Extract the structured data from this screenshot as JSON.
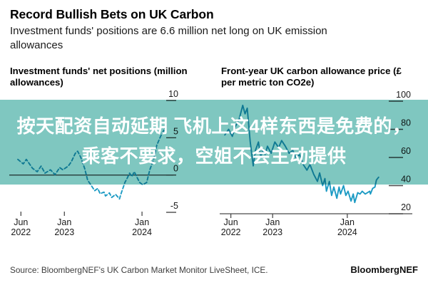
{
  "header": {
    "title": "Record Bullish Bets on UK Carbon",
    "subtitle": "Investment funds' positions are 6.6 million net long on UK emission allowances"
  },
  "overlay": {
    "line1": "按天配资自动延期 飞机上这4样东西是免费的，",
    "line2": "乘客不要求，空姐不会主动提供",
    "band_color": "#7fc7c0",
    "text_color": "#ffffff"
  },
  "footer": {
    "source": "Source: BloombergNEF's UK Carbon Market Monitor LiveSheet, ICE.",
    "brand": "BloombergNEF"
  },
  "colors": {
    "line": "#1d9bc4",
    "axis": "#4a4a4a",
    "tick_text": "#1a1a1a"
  },
  "chart_data": [
    {
      "type": "line",
      "title": "Investment funds' net positions (million allowances)",
      "ylabel": "million allowances",
      "line_style": "dashed",
      "xlim": [
        2022.29,
        2024.33
      ],
      "ylim": [
        -5,
        10
      ],
      "yticks": [
        10,
        5,
        0,
        -5
      ],
      "xticks": [
        {
          "v": 2022.44,
          "l1": "Jun",
          "l2": "2022"
        },
        {
          "v": 2023.0,
          "l1": "Jan",
          "l2": "2023"
        },
        {
          "v": 2024.0,
          "l1": "Jan",
          "l2": "2024"
        }
      ],
      "zero_line": true,
      "baseline": false,
      "x": [
        2022.4,
        2022.47,
        2022.51,
        2022.59,
        2022.65,
        2022.7,
        2022.75,
        2022.82,
        2022.88,
        2022.94,
        2022.98,
        2023.05,
        2023.09,
        2023.14,
        2023.17,
        2023.21,
        2023.26,
        2023.3,
        2023.34,
        2023.39,
        2023.43,
        2023.46,
        2023.51,
        2023.53,
        2023.58,
        2023.61,
        2023.66,
        2023.71,
        2023.73,
        2023.78,
        2023.81,
        2023.84,
        2023.87,
        2023.9,
        2023.94,
        2023.97,
        2024.01,
        2024.06,
        2024.1,
        2024.15,
        2024.19,
        2024.24,
        2024.28,
        2024.31
      ],
      "y": [
        2.1,
        1.5,
        2.1,
        0.9,
        0.45,
        1.2,
        0.25,
        0.7,
        0.05,
        1.0,
        0.7,
        1.2,
        1.8,
        2.9,
        3.2,
        2.4,
        0.9,
        -0.7,
        -1.3,
        -2.1,
        -1.8,
        -2.5,
        -2.3,
        -2.8,
        -2.4,
        -3.0,
        -2.6,
        -3.2,
        -2.5,
        -1.0,
        -0.4,
        0.25,
        -0.2,
        0.45,
        -0.4,
        -1.0,
        -1.3,
        -1.0,
        0.7,
        2.1,
        4.0,
        5.2,
        6.0,
        6.6
      ]
    },
    {
      "type": "line",
      "title": "Front-year UK carbon allowance price (£ per metric ton CO2e)",
      "ylabel": "£ per metric ton CO2e",
      "line_style": "solid",
      "xlim": [
        2022.31,
        2024.46
      ],
      "ylim": [
        20,
        100
      ],
      "yticks": [
        100,
        80,
        60,
        40,
        20
      ],
      "xticks": [
        {
          "v": 2022.44,
          "l1": "Jun",
          "l2": "2022"
        },
        {
          "v": 2023.0,
          "l1": "Jan",
          "l2": "2023"
        },
        {
          "v": 2024.0,
          "l1": "Jan",
          "l2": "2024"
        }
      ],
      "zero_line": false,
      "baseline": true,
      "x": [
        2022.36,
        2022.41,
        2022.46,
        2022.5,
        2022.55,
        2022.6,
        2022.63,
        2022.66,
        2022.7,
        2022.74,
        2022.77,
        2022.81,
        2022.84,
        2022.87,
        2022.9,
        2022.93,
        2022.98,
        2023.03,
        2023.08,
        2023.12,
        2023.17,
        2023.22,
        2023.27,
        2023.31,
        2023.36,
        2023.41,
        2023.46,
        2023.5,
        2023.55,
        2023.6,
        2023.63,
        2023.67,
        2023.7,
        2023.72,
        2023.76,
        2023.79,
        2023.82,
        2023.86,
        2023.89,
        2023.91,
        2023.95,
        2023.98,
        2024.01,
        2024.05,
        2024.08,
        2024.1,
        2024.14,
        2024.17,
        2024.2,
        2024.24,
        2024.27,
        2024.3,
        2024.31,
        2024.34,
        2024.37,
        2024.39,
        2024.42
      ],
      "y": [
        76,
        80,
        75,
        82,
        87,
        97,
        91,
        95,
        71,
        54,
        65,
        71,
        60,
        66,
        62,
        68,
        63,
        71,
        67,
        72,
        68,
        63,
        65,
        60,
        62,
        55,
        51,
        55,
        48,
        43,
        49,
        40,
        45,
        36,
        43,
        33,
        39,
        31,
        39,
        34,
        40,
        33,
        36,
        29,
        34,
        28,
        35,
        34,
        36,
        34,
        35,
        36,
        34,
        38,
        39,
        44,
        46
      ]
    }
  ]
}
